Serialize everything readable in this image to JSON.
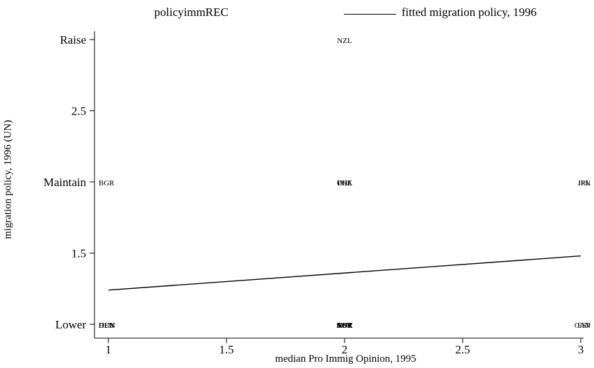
{
  "chart_data": {
    "type": "scatter",
    "xlabel": "median Pro Immig Opinion, 1995",
    "ylabel": "migration policy, 1996 (UN)",
    "xlim": [
      0.97,
      3.03
    ],
    "ylim": [
      0.97,
      3.0
    ],
    "x_ticks": [
      {
        "value": 1,
        "label": "1"
      },
      {
        "value": 1.5,
        "label": "1.5"
      },
      {
        "value": 2,
        "label": "2"
      },
      {
        "value": 2.5,
        "label": "2.5"
      },
      {
        "value": 3,
        "label": "3"
      }
    ],
    "y_ticks": [
      {
        "value": 1,
        "label": "Lower"
      },
      {
        "value": 1.5,
        "label": "1.5"
      },
      {
        "value": 2,
        "label": "Maintain"
      },
      {
        "value": 2.5,
        "label": "2.5"
      },
      {
        "value": 3,
        "label": "Raise"
      }
    ],
    "legend": {
      "placement": "top",
      "entries": [
        "policyimmREC",
        "fitted migration policy, 1996"
      ]
    },
    "series": [
      {
        "name": "policyimmREC",
        "kind": "marker-labels",
        "points": [
          {
            "x": 2,
            "y": 3,
            "label": "NZL"
          },
          {
            "x": 1,
            "y": 2,
            "label": "BGR"
          },
          {
            "x": 2,
            "y": 2,
            "label": "POL"
          },
          {
            "x": 2,
            "y": 2,
            "label": "CHE"
          },
          {
            "x": 2,
            "y": 2,
            "label": "USA"
          },
          {
            "x": 3,
            "y": 2,
            "label": "IRL"
          },
          {
            "x": 3,
            "y": 2,
            "label": "JPN"
          },
          {
            "x": 1,
            "y": 1,
            "label": "DEU"
          },
          {
            "x": 1,
            "y": 1,
            "label": "HUN"
          },
          {
            "x": 1,
            "y": 1,
            "label": "DEN"
          },
          {
            "x": 2,
            "y": 1,
            "label": "AUT"
          },
          {
            "x": 2,
            "y": 1,
            "label": "NOR"
          },
          {
            "x": 2,
            "y": 1,
            "label": "SWE"
          },
          {
            "x": 2,
            "y": 1,
            "label": "GBR"
          },
          {
            "x": 2,
            "y": 1,
            "label": "ESP"
          },
          {
            "x": 3,
            "y": 1,
            "label": "CAN"
          },
          {
            "x": 3,
            "y": 1,
            "label": "ESP"
          }
        ]
      },
      {
        "name": "fitted migration policy, 1996",
        "kind": "line",
        "x": [
          1,
          3
        ],
        "y": [
          1.24,
          1.48
        ]
      }
    ]
  }
}
